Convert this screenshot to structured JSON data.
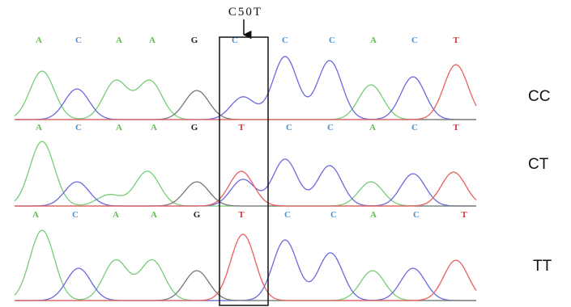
{
  "annotation": "C50T",
  "tracks": [
    {
      "genotype": "CC",
      "bases": [
        "A",
        "C",
        "A",
        "A",
        "G",
        "C",
        "C",
        "C",
        "A",
        "C",
        "T"
      ]
    },
    {
      "genotype": "CT",
      "bases": [
        "A",
        "C",
        "A",
        "A",
        "G",
        "T",
        "C",
        "C",
        "A",
        "C",
        "T"
      ]
    },
    {
      "genotype": "TT",
      "bases": [
        "A",
        "C",
        "A",
        "A",
        "G",
        "T",
        "C",
        "C",
        "A",
        "C",
        "T"
      ]
    }
  ]
}
